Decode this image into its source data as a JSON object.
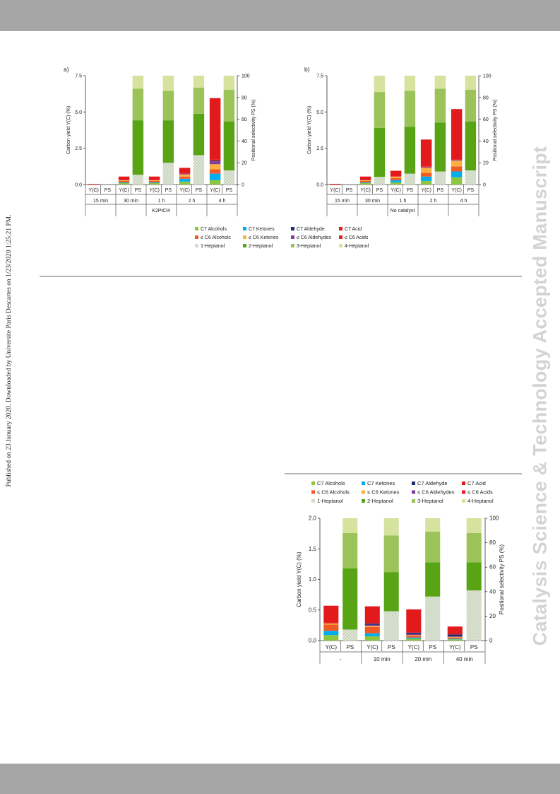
{
  "page": {
    "side_note": "Published on 23 January 2020. Downloaded by Universite Paris Descartes on 1/23/2020 1:25:21 PM.",
    "watermark": "Catalysis Science & Technology Accepted Manuscript",
    "band_color": "#a6a6a6"
  },
  "legend": {
    "entries": [
      {
        "label": "C7 Alcohols",
        "color": "#8dc63f"
      },
      {
        "label": "C7 Ketones",
        "color": "#00aeef"
      },
      {
        "label": "C7 Aldehyde",
        "color": "#1f2d6e"
      },
      {
        "label": "C7 Acid",
        "color": "#e31a1c"
      },
      {
        "label": "≤ C6 Alcohols",
        "color": "#f15a24"
      },
      {
        "label": "≤ C6 Ketones",
        "color": "#fbb040"
      },
      {
        "label": "≤ C6 Aldehydes",
        "color": "#7f3f98"
      },
      {
        "label": "≤ C6 Acids",
        "color": "#ee1c25"
      },
      {
        "label": "1-Heptanol",
        "color": "#c8d5bd",
        "pattern": "hatched"
      },
      {
        "label": "2-Heptanol",
        "color": "#58a415"
      },
      {
        "label": "3-Heptanol",
        "color": "#9cc35a"
      },
      {
        "label": "4-Heptanol",
        "color": "#d6e39f"
      }
    ]
  },
  "chart_data": [
    {
      "type": "bar",
      "panel_label": "a)",
      "footer": "K2PtCl4",
      "ylabel": "Carbon yield Y(C) (%)",
      "y2label": "Positional selectivity PS (%)",
      "ylim": [
        0,
        7.5
      ],
      "yticks": [
        "0.0",
        "2.5",
        "5.0",
        "7.5"
      ],
      "y2lim": [
        0,
        100
      ],
      "y2ticks": [
        "0",
        "20",
        "40",
        "60",
        "80",
        "100"
      ],
      "groups": [
        "15 min",
        "30 min",
        "1 h",
        "2 h",
        "4 h"
      ],
      "bar_labels": [
        "Y(C)",
        "PS"
      ],
      "yield_order": [
        "C7 Alcohols",
        "C7 Ketones",
        "≤ C6 Alcohols",
        "≤ C6 Ketones",
        "≤ C6 Aldehydes",
        "C7 Aldehyde",
        "≤ C6 Acids",
        "C7 Acid"
      ],
      "yields": [
        {
          "C7 Alcohols": 0.0,
          "C7 Ketones": 0.0,
          "≤ C6 Alcohols": 0.0,
          "≤ C6 Ketones": 0.0,
          "≤ C6 Aldehydes": 0.0,
          "C7 Aldehyde": 0.0,
          "≤ C6 Acids": 0.0,
          "C7 Acid": 0.04
        },
        {
          "C7 Alcohols": 0.1,
          "C7 Ketones": 0.05,
          "≤ C6 Alcohols": 0.1,
          "≤ C6 Ketones": 0.05,
          "≤ C6 Aldehydes": 0.0,
          "C7 Aldehyde": 0.0,
          "≤ C6 Acids": 0.0,
          "C7 Acid": 0.25
        },
        {
          "C7 Alcohols": 0.1,
          "C7 Ketones": 0.05,
          "≤ C6 Alcohols": 0.1,
          "≤ C6 Ketones": 0.05,
          "≤ C6 Aldehydes": 0.0,
          "C7 Aldehyde": 0.0,
          "≤ C6 Acids": 0.0,
          "C7 Acid": 0.25
        },
        {
          "C7 Alcohols": 0.2,
          "C7 Ketones": 0.2,
          "≤ C6 Alcohols": 0.15,
          "≤ C6 Ketones": 0.15,
          "≤ C6 Aldehydes": 0.05,
          "C7 Aldehyde": 0.0,
          "≤ C6 Acids": 0.05,
          "C7 Acid": 0.35
        },
        {
          "C7 Alcohols": 0.3,
          "C7 Ketones": 0.45,
          "≤ C6 Alcohols": 0.3,
          "≤ C6 Ketones": 0.35,
          "≤ C6 Aldehydes": 0.2,
          "C7 Aldehyde": 0.05,
          "≤ C6 Acids": 0.1,
          "C7 Acid": 4.2
        }
      ],
      "selectivity": [
        {
          "1-Heptanol": 0,
          "2-Heptanol": 0,
          "3-Heptanol": 0,
          "4-Heptanol": 0
        },
        {
          "1-Heptanol": 9,
          "2-Heptanol": 50,
          "3-Heptanol": 29,
          "4-Heptanol": 12
        },
        {
          "1-Heptanol": 20,
          "2-Heptanol": 39,
          "3-Heptanol": 27,
          "4-Heptanol": 14
        },
        {
          "1-Heptanol": 27,
          "2-Heptanol": 38,
          "3-Heptanol": 24,
          "4-Heptanol": 11
        },
        {
          "1-Heptanol": 13,
          "2-Heptanol": 45,
          "3-Heptanol": 29,
          "4-Heptanol": 13
        }
      ]
    },
    {
      "type": "bar",
      "panel_label": "b)",
      "footer": "No catalyst",
      "ylabel": "Carbon yield Y(C) (%)",
      "y2label": "Positional selectivity PS (%)",
      "ylim": [
        0,
        7.5
      ],
      "yticks": [
        "0.0",
        "2.5",
        "5.0",
        "7.5"
      ],
      "y2lim": [
        0,
        100
      ],
      "y2ticks": [
        "0",
        "20",
        "40",
        "60",
        "80",
        "100"
      ],
      "groups": [
        "15 min",
        "30 min",
        "1 h",
        "2 h",
        "4 h"
      ],
      "bar_labels": [
        "Y(C)",
        "PS"
      ],
      "yield_order": [
        "C7 Alcohols",
        "C7 Ketones",
        "≤ C6 Alcohols",
        "≤ C6 Ketones",
        "≤ C6 Aldehydes",
        "C7 Aldehyde",
        "≤ C6 Acids",
        "C7 Acid"
      ],
      "yields": [
        {
          "C7 Alcohols": 0.0,
          "C7 Ketones": 0.0,
          "≤ C6 Alcohols": 0.0,
          "≤ C6 Ketones": 0.0,
          "≤ C6 Aldehydes": 0.0,
          "C7 Aldehyde": 0.0,
          "≤ C6 Acids": 0.0,
          "C7 Acid": 0.05
        },
        {
          "C7 Alcohols": 0.1,
          "C7 Ketones": 0.05,
          "≤ C6 Alcohols": 0.1,
          "≤ C6 Ketones": 0.05,
          "≤ C6 Aldehydes": 0.0,
          "C7 Aldehyde": 0.0,
          "≤ C6 Acids": 0.0,
          "C7 Acid": 0.25
        },
        {
          "C7 Alcohols": 0.15,
          "C7 Ketones": 0.15,
          "≤ C6 Alcohols": 0.15,
          "≤ C6 Ketones": 0.1,
          "≤ C6 Aldehydes": 0.0,
          "C7 Aldehyde": 0.0,
          "≤ C6 Acids": 0.0,
          "C7 Acid": 0.4
        },
        {
          "C7 Alcohols": 0.25,
          "C7 Ketones": 0.3,
          "≤ C6 Alcohols": 0.25,
          "≤ C6 Ketones": 0.35,
          "≤ C6 Aldehydes": 0.05,
          "C7 Aldehyde": 0.0,
          "≤ C6 Acids": 0.05,
          "C7 Acid": 1.85
        },
        {
          "C7 Alcohols": 0.5,
          "C7 Ketones": 0.4,
          "≤ C6 Alcohols": 0.35,
          "≤ C6 Ketones": 0.4,
          "≤ C6 Aldehydes": 0.05,
          "C7 Aldehyde": 0.0,
          "≤ C6 Acids": 0.05,
          "C7 Acid": 3.45
        }
      ],
      "selectivity": [
        {
          "1-Heptanol": 0,
          "2-Heptanol": 0,
          "3-Heptanol": 0,
          "4-Heptanol": 0
        },
        {
          "1-Heptanol": 7,
          "2-Heptanol": 45,
          "3-Heptanol": 33,
          "4-Heptanol": 15
        },
        {
          "1-Heptanol": 10,
          "2-Heptanol": 43,
          "3-Heptanol": 33,
          "4-Heptanol": 14
        },
        {
          "1-Heptanol": 12,
          "2-Heptanol": 45,
          "3-Heptanol": 31,
          "4-Heptanol": 12
        },
        {
          "1-Heptanol": 13,
          "2-Heptanol": 45,
          "3-Heptanol": 29,
          "4-Heptanol": 13
        }
      ]
    },
    {
      "type": "bar",
      "panel_label": "",
      "footer": "",
      "ylabel": "Carbon yield Y(C) (%)",
      "y2label": "Positional selectivity PS (%)",
      "ylim": [
        0,
        2.0
      ],
      "yticks": [
        "0.0",
        "0.5",
        "1.0",
        "1.5",
        "2.0"
      ],
      "y2lim": [
        0,
        100
      ],
      "y2ticks": [
        "0",
        "20",
        "40",
        "60",
        "80",
        "100"
      ],
      "groups": [
        "-",
        "10 min",
        "20 min",
        "40 min"
      ],
      "bar_labels": [
        "Y(C)",
        "PS"
      ],
      "yield_order": [
        "C7 Alcohols",
        "C7 Ketones",
        "≤ C6 Alcohols",
        "≤ C6 Ketones",
        "≤ C6 Aldehydes",
        "C7 Aldehyde",
        "≤ C6 Acids",
        "C7 Acid"
      ],
      "yields": [
        {
          "C7 Alcohols": 0.09,
          "C7 Ketones": 0.07,
          "≤ C6 Alcohols": 0.1,
          "≤ C6 Ketones": 0.02,
          "≤ C6 Aldehydes": 0.0,
          "C7 Aldehyde": 0.0,
          "≤ C6 Acids": 0.01,
          "C7 Acid": 0.28
        },
        {
          "C7 Alcohols": 0.07,
          "C7 Ketones": 0.05,
          "≤ C6 Alcohols": 0.1,
          "≤ C6 Ketones": 0.02,
          "≤ C6 Aldehydes": 0.02,
          "C7 Aldehyde": 0.02,
          "≤ C6 Acids": 0.0,
          "C7 Acid": 0.28
        },
        {
          "C7 Alcohols": 0.03,
          "C7 Ketones": 0.02,
          "≤ C6 Alcohols": 0.03,
          "≤ C6 Ketones": 0.01,
          "≤ C6 Aldehydes": 0.02,
          "C7 Aldehyde": 0.02,
          "≤ C6 Acids": 0.0,
          "C7 Acid": 0.38
        },
        {
          "C7 Alcohols": 0.02,
          "C7 Ketones": 0.01,
          "≤ C6 Alcohols": 0.02,
          "≤ C6 Ketones": 0.01,
          "≤ C6 Aldehydes": 0.01,
          "C7 Aldehyde": 0.03,
          "≤ C6 Acids": 0.0,
          "C7 Acid": 0.13
        }
      ],
      "selectivity": [
        {
          "1-Heptanol": 9,
          "2-Heptanol": 50,
          "3-Heptanol": 29,
          "4-Heptanol": 12
        },
        {
          "1-Heptanol": 24,
          "2-Heptanol": 32,
          "3-Heptanol": 30,
          "4-Heptanol": 14
        },
        {
          "1-Heptanol": 36,
          "2-Heptanol": 28,
          "3-Heptanol": 25,
          "4-Heptanol": 11
        },
        {
          "1-Heptanol": 41,
          "2-Heptanol": 23,
          "3-Heptanol": 24,
          "4-Heptanol": 12
        }
      ]
    }
  ]
}
